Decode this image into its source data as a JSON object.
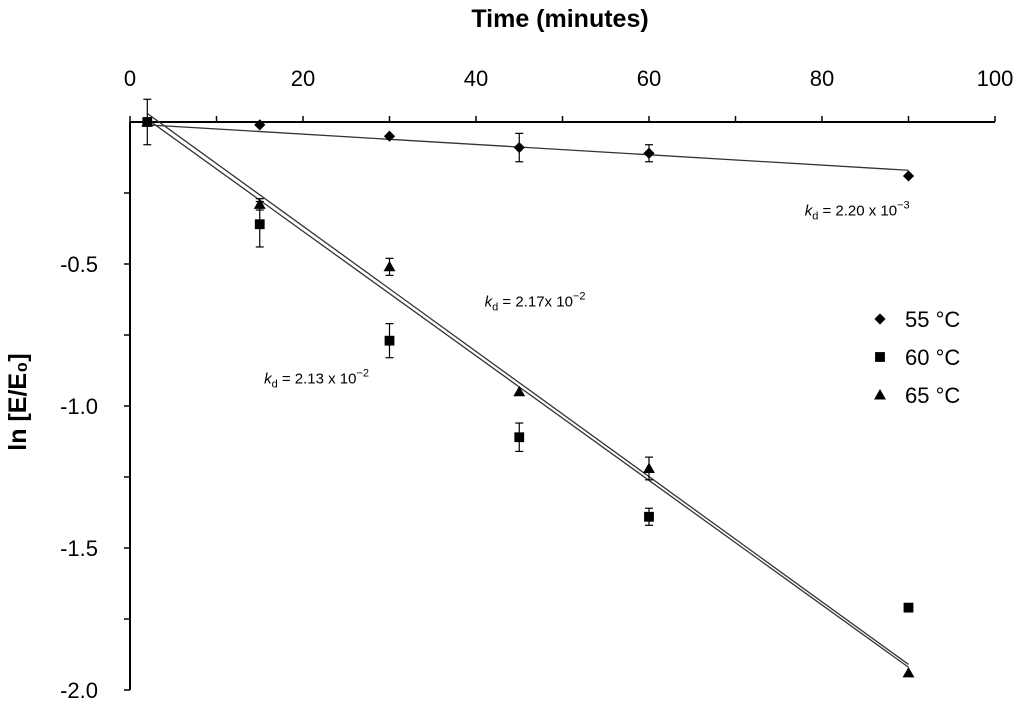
{
  "chart_data": {
    "type": "scatter",
    "title": "Time (minutes)",
    "xlabel": "Time (minutes)",
    "ylabel": "ln [E/E₀]",
    "xlim": [
      0,
      100
    ],
    "ylim": [
      -2.0,
      0
    ],
    "x_ticks": [
      0,
      20,
      40,
      60,
      80,
      100
    ],
    "x_tick_labels": [
      "0",
      "20",
      "40",
      "60",
      "80",
      "100"
    ],
    "y_ticks": [
      -0.5,
      -1.0,
      -1.5,
      -2.0
    ],
    "y_tick_labels": [
      "-0.5",
      "-1.0",
      "-1.5",
      "-2.0"
    ],
    "x_axis_position": "top",
    "grid": false,
    "legend_position": "right",
    "series": [
      {
        "name": "55 °C",
        "marker": "diamond",
        "x": [
          2,
          15,
          30,
          45,
          60,
          90
        ],
        "y": [
          0.0,
          -0.01,
          -0.05,
          -0.09,
          -0.11,
          -0.19
        ],
        "err": [
          0.0,
          0.0,
          0.0,
          0.05,
          0.03,
          0.0
        ],
        "fit": {
          "x": [
            2,
            90
          ],
          "y": [
            -0.01,
            -0.17
          ]
        }
      },
      {
        "name": "60 °C",
        "marker": "square",
        "x": [
          2,
          15,
          30,
          45,
          60,
          90
        ],
        "y": [
          0.0,
          -0.36,
          -0.77,
          -1.11,
          -1.39,
          -1.71
        ],
        "err": [
          0.08,
          0.08,
          0.06,
          0.05,
          0.03,
          0.0
        ],
        "fit": {
          "x": [
            2,
            90
          ],
          "y": [
            0.01,
            -1.92
          ]
        }
      },
      {
        "name": "65 °C",
        "marker": "triangle",
        "x": [
          2,
          15,
          30,
          45,
          60,
          90
        ],
        "y": [
          0.0,
          -0.29,
          -0.51,
          -0.95,
          -1.22,
          -1.94
        ],
        "err": [
          0.0,
          0.02,
          0.03,
          0.0,
          0.04,
          0.0
        ],
        "fit": {
          "x": [
            2,
            90
          ],
          "y": [
            0.03,
            -1.91
          ]
        }
      }
    ],
    "annotations": [
      {
        "prefix": "k",
        "sub": "d",
        "text": " = 2.20 x 10",
        "exp": "−3",
        "x": 78,
        "y": -0.33
      },
      {
        "prefix": "k",
        "sub": "d",
        "text": " = 2.17x 10",
        "exp": "−2",
        "x": 41,
        "y": -0.65
      },
      {
        "prefix": "k",
        "sub": "d",
        "text": " = 2.13 x 10",
        "exp": "−2",
        "x": 15.5,
        "y": -0.92
      }
    ]
  }
}
